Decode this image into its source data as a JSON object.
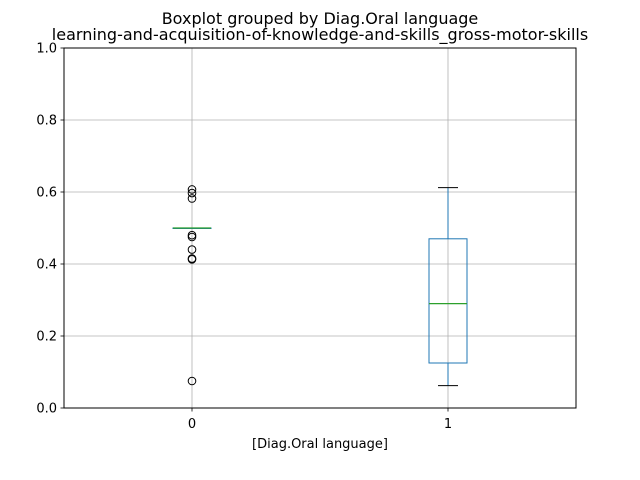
{
  "chart_data": {
    "type": "box",
    "title": "Boxplot grouped by Diag.Oral language",
    "subtitle": "learning-and-acquisition-of-knowledge-and-skills_gross-motor-skills",
    "xlabel": "[Diag.Oral language]",
    "ylabel": "",
    "ylim": [
      0,
      1
    ],
    "yticks": [
      "0.0",
      "0.2",
      "0.4",
      "0.6",
      "0.8",
      "1.0"
    ],
    "grid": true,
    "categories": [
      "0",
      "1"
    ],
    "boxes": [
      {
        "category": "0",
        "whisker_low": 0.5,
        "q1": 0.5,
        "median": 0.5,
        "q3": 0.5,
        "whisker_high": 0.5,
        "fliers": [
          0.607,
          0.597,
          0.582,
          0.48,
          0.475,
          0.44,
          0.415,
          0.413,
          0.075
        ]
      },
      {
        "category": "1",
        "whisker_low": 0.062,
        "q1": 0.125,
        "median": 0.29,
        "q3": 0.47,
        "whisker_high": 0.612,
        "fliers": []
      }
    ],
    "colors": {
      "box": "#1f77b4",
      "median": "#2ca02c",
      "whisker_cap": "#000000",
      "grid": "#b0b0b0"
    }
  }
}
